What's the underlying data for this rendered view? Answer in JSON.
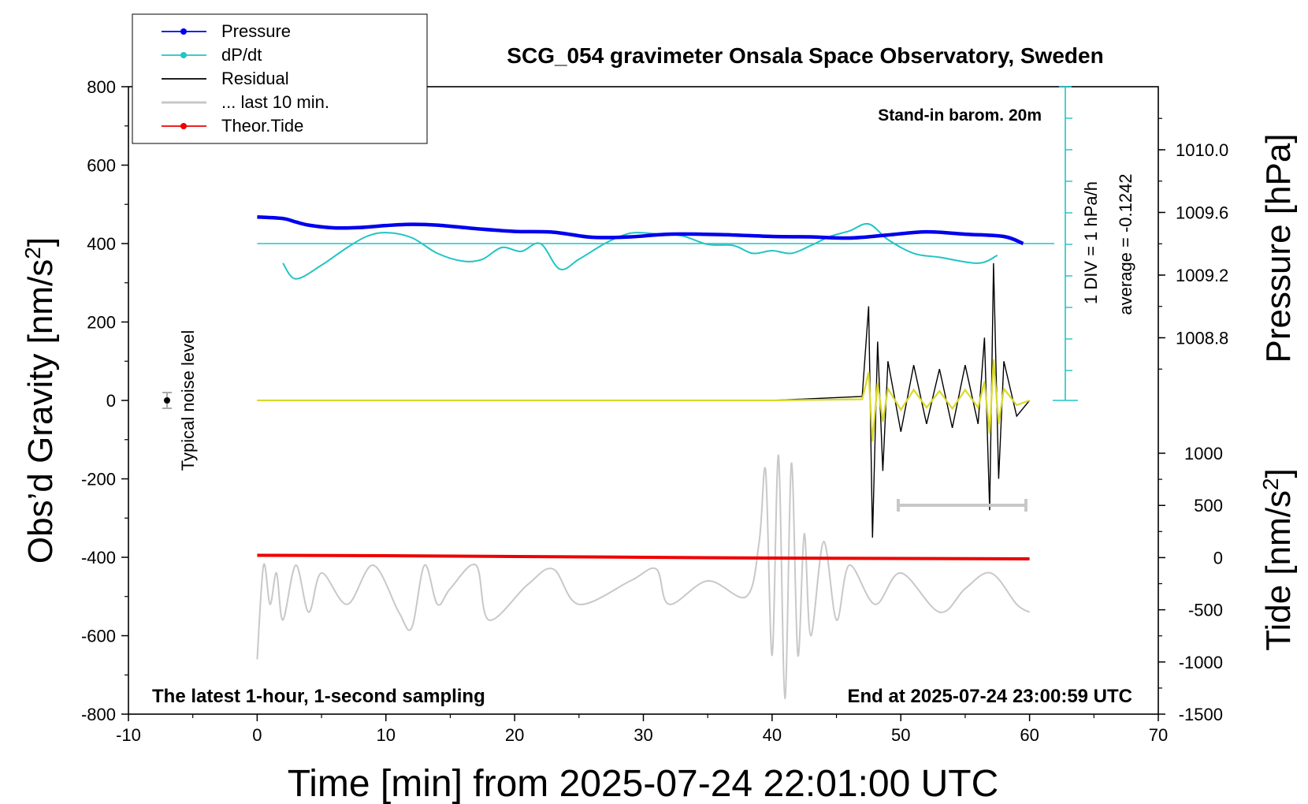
{
  "chart_data": {
    "type": "line",
    "title": "SCG_054 gravimeter Onsala Space Observatory, Sweden",
    "xlabel": "Time [min] from 2025-07-24 22:01:00 UTC",
    "ylabel": "Obs’d Gravity [nm/s",
    "ylabel_sup": "2",
    "ylabel_end": "]",
    "y2label": "Pressure [hPa]",
    "y3label": "Tide [nm/s",
    "y3label_sup": "2",
    "y3label_end": "]",
    "xlim": [
      -10,
      70
    ],
    "ylim": [
      -800,
      800
    ],
    "x_ticks": [
      "-10",
      "0",
      "10",
      "20",
      "30",
      "40",
      "50",
      "60",
      "70"
    ],
    "y_ticks": [
      "800",
      "600",
      "400",
      "200",
      "0",
      "-200",
      "-400",
      "-600",
      "-800"
    ],
    "pressure_ticks": [
      "1010.0",
      "1009.6",
      "1009.2",
      "1008.8"
    ],
    "tide_ticks": [
      "1000",
      "500",
      "0",
      "-500",
      "-1000",
      "-1500"
    ],
    "annotations": {
      "stand_in": "Stand-in barom. 20m",
      "div_note": "1 DIV = 1 hPa/h",
      "average_note": "average = -0.1242",
      "noise_label": "Typical noise level",
      "bottom_left": "The latest 1-hour, 1-second sampling",
      "bottom_right": "End at 2025-07-24 23:00:59 UTC"
    },
    "legend": {
      "placement": "top-left",
      "entries": [
        "Pressure",
        "dP/dt",
        "Residual",
        "... last 10 min.",
        "Theor.Tide"
      ]
    },
    "colors": {
      "pressure": "#0000ee",
      "dpdt": "#22c4c4",
      "residual": "#000000",
      "last10": "#c8c8c8",
      "tide": "#ee0000",
      "highlight": "#d9d92a"
    },
    "series": [
      {
        "name": "Pressure",
        "x": [
          0,
          2,
          3,
          4,
          6,
          8,
          10,
          12,
          14,
          17,
          20,
          23,
          26,
          29,
          32,
          36,
          40,
          43,
          46,
          49,
          52,
          55,
          58,
          59.5
        ],
        "y": [
          468,
          464,
          455,
          447,
          440,
          441,
          446,
          449,
          447,
          438,
          431,
          429,
          416,
          417,
          424,
          423,
          418,
          417,
          414,
          422,
          430,
          424,
          418,
          400
        ]
      },
      {
        "name": "dP/dt",
        "x": [
          2,
          3,
          5,
          7,
          8.5,
          10,
          12,
          14,
          16,
          17.5,
          19,
          20.5,
          22,
          23.5,
          25,
          27,
          28.5,
          29.5,
          31,
          33,
          35,
          37,
          38.5,
          40,
          41.5,
          43,
          44.5,
          46,
          47.5,
          49,
          51,
          53,
          56,
          57.5
        ],
        "y": [
          350,
          310,
          345,
          390,
          418,
          428,
          415,
          375,
          355,
          360,
          390,
          380,
          400,
          335,
          360,
          400,
          422,
          428,
          425,
          420,
          398,
          395,
          375,
          382,
          375,
          395,
          418,
          432,
          450,
          410,
          375,
          365,
          350,
          370
        ]
      },
      {
        "name": "Residual",
        "x": [
          0,
          10,
          20,
          30,
          40,
          47,
          47.5,
          47.8,
          48.2,
          48.6,
          49,
          50,
          51,
          52,
          53,
          54,
          55,
          56,
          56.5,
          56.9,
          57.2,
          57.6,
          58,
          59,
          60
        ],
        "y": [
          0,
          0,
          0,
          0,
          0,
          10,
          240,
          -350,
          150,
          -180,
          100,
          -80,
          90,
          -60,
          80,
          -70,
          90,
          -60,
          160,
          -280,
          350,
          -200,
          100,
          -40,
          0
        ]
      },
      {
        "name": "... last 10 min.",
        "x": [
          0,
          0.5,
          1,
          1.5,
          2,
          3,
          4,
          5,
          7,
          9,
          11,
          12,
          13,
          14,
          15,
          17,
          18,
          21,
          23,
          25,
          29,
          31,
          32,
          35,
          38,
          39,
          39.5,
          40,
          40.5,
          41,
          41.5,
          42,
          42.5,
          43,
          44,
          45,
          46,
          48,
          50,
          53,
          55,
          57,
          59,
          60
        ],
        "y": [
          -660,
          -420,
          -520,
          -440,
          -560,
          -420,
          -540,
          -440,
          -520,
          -420,
          -540,
          -580,
          -420,
          -520,
          -480,
          -420,
          -560,
          -470,
          -430,
          -520,
          -460,
          -430,
          -520,
          -460,
          -500,
          -360,
          -180,
          -650,
          -140,
          -760,
          -160,
          -650,
          -340,
          -600,
          -360,
          -560,
          -420,
          -520,
          -440,
          -540,
          -480,
          -440,
          -520,
          -540
        ]
      },
      {
        "name": "Theor.Tide",
        "x": [
          0,
          10,
          20,
          30,
          40,
          50,
          60
        ],
        "y": [
          -395,
          -396,
          -398,
          -400,
          -402,
          -403,
          -404
        ]
      }
    ]
  }
}
